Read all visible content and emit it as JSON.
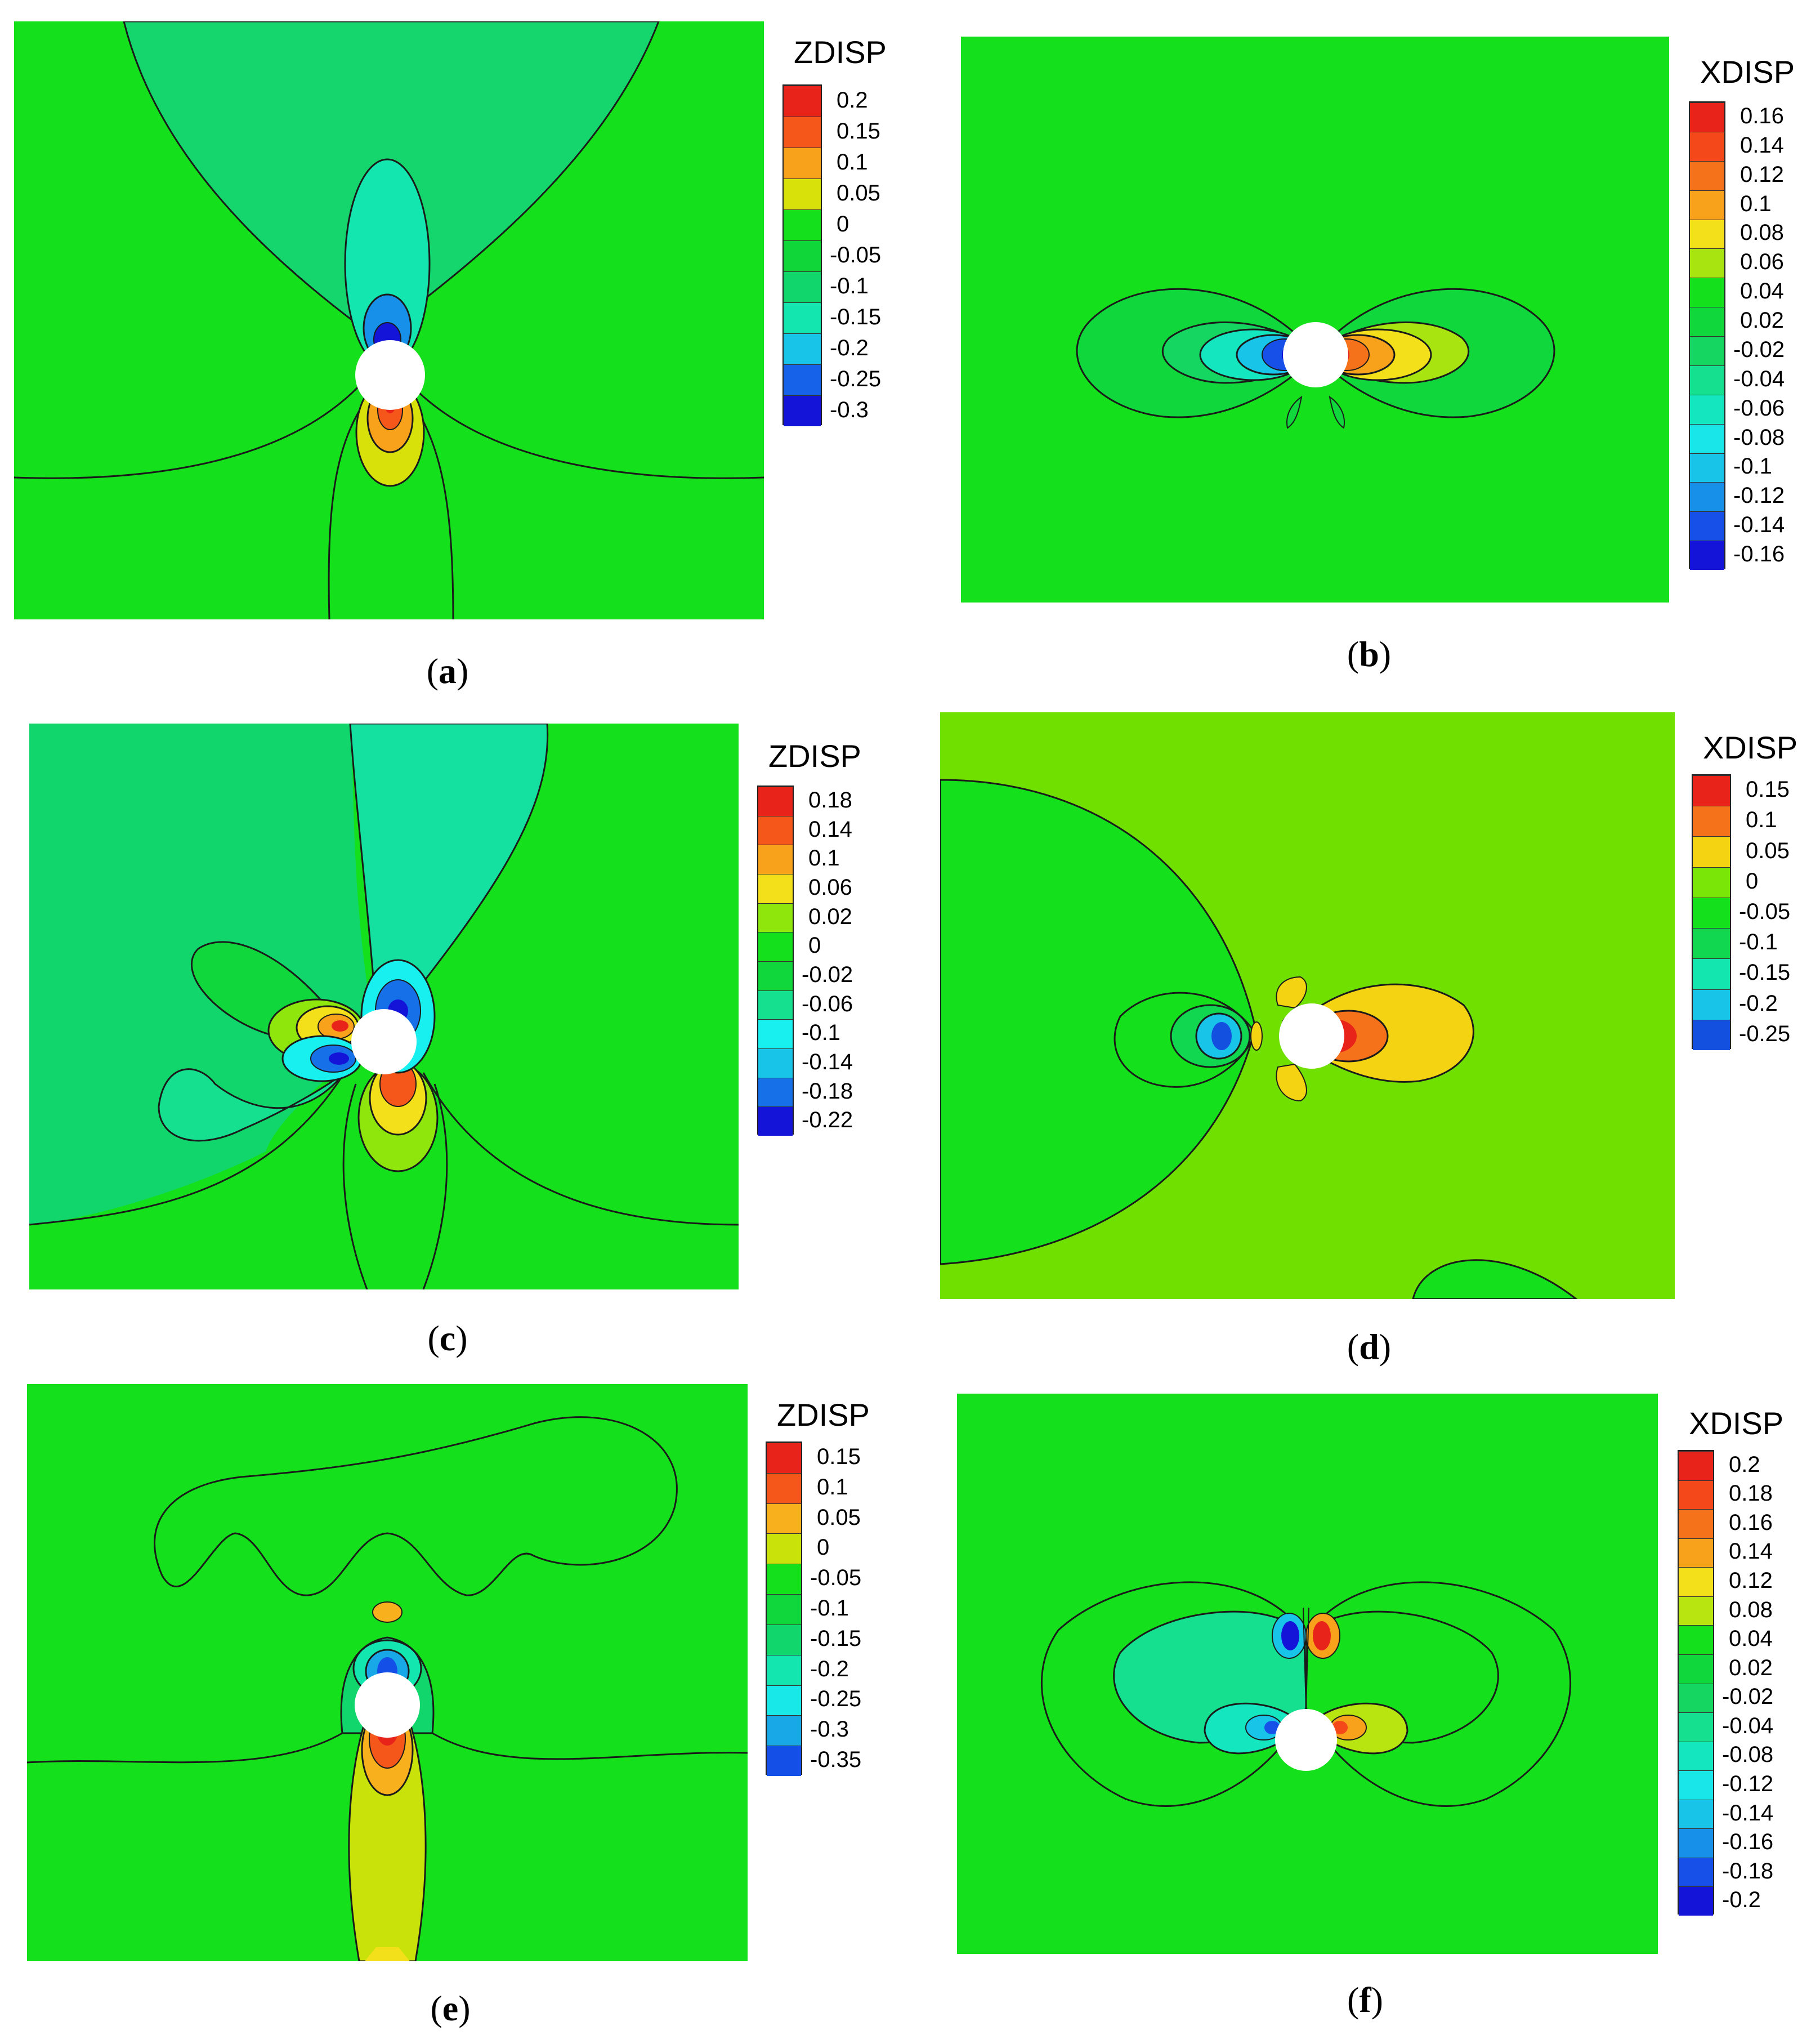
{
  "panels": [
    {
      "id": "a",
      "caption_letter": "a",
      "legend_title": "ZDISP",
      "legend_values": [
        "0.2",
        "0.15",
        "0.1",
        "0.05",
        "0",
        "-0.05",
        "-0.1",
        "-0.15",
        "-0.2",
        "-0.25",
        "-0.3"
      ],
      "legend_colors": [
        "#e8231a",
        "#f5561a",
        "#f8a21c",
        "#d8e20a",
        "#14e01c",
        "#10d63a",
        "#10d66c",
        "#14e6b0",
        "#18c4e8",
        "#1662e8",
        "#1414d8"
      ],
      "background_color": "#14e01c"
    },
    {
      "id": "b",
      "caption_letter": "b",
      "legend_title": "XDISP",
      "legend_values": [
        "0.16",
        "0.14",
        "0.12",
        "0.1",
        "0.08",
        "0.06",
        "0.04",
        "0.02",
        "-0.02",
        "-0.04",
        "-0.06",
        "-0.08",
        "-0.1",
        "-0.12",
        "-0.14",
        "-0.16"
      ],
      "legend_colors": [
        "#e8231a",
        "#f5481a",
        "#f5721a",
        "#f8a21c",
        "#f4e01a",
        "#a8e410",
        "#14e01c",
        "#10d83c",
        "#14d660",
        "#14e090",
        "#14e6c0",
        "#18e6e8",
        "#18c4e8",
        "#1690e8",
        "#1650e8",
        "#1414d8"
      ],
      "background_color": "#14e01c"
    },
    {
      "id": "c",
      "caption_letter": "c",
      "legend_title": "ZDISP",
      "legend_values": [
        "0.18",
        "0.14",
        "0.1",
        "0.06",
        "0.02",
        "0",
        "-0.02",
        "-0.06",
        "-0.1",
        "-0.14",
        "-0.18",
        "-0.22"
      ],
      "legend_colors": [
        "#e8231a",
        "#f5561a",
        "#f8a21c",
        "#f4e01a",
        "#8ee60c",
        "#14e01c",
        "#10d83c",
        "#14e090",
        "#18f0f0",
        "#18c4e8",
        "#1670e8",
        "#1414d8"
      ],
      "background_color": "#14e01c"
    },
    {
      "id": "d",
      "caption_letter": "d",
      "legend_title": "XDISP",
      "legend_values": [
        "0.15",
        "0.1",
        "0.05",
        "0",
        "-0.05",
        "-0.1",
        "-0.15",
        "-0.2",
        "-0.25"
      ],
      "legend_colors": [
        "#e8231a",
        "#f5721a",
        "#f4d412",
        "#7ae608",
        "#14e01c",
        "#10d650",
        "#14e6b0",
        "#18c4e8",
        "#1450e0"
      ],
      "background_color": "#6fe000"
    },
    {
      "id": "e",
      "caption_letter": "e",
      "legend_title": "ZDISP",
      "legend_values": [
        "0.15",
        "0.1",
        "0.05",
        "0",
        "-0.05",
        "-0.1",
        "-0.15",
        "-0.2",
        "-0.25",
        "-0.3",
        "-0.35"
      ],
      "legend_colors": [
        "#e8231a",
        "#f5561a",
        "#f8b01c",
        "#c8e20a",
        "#14e01c",
        "#10d83c",
        "#10d66c",
        "#14e6b0",
        "#18e8e8",
        "#18a8e8",
        "#1450e8"
      ],
      "background_color": "#14e01c"
    },
    {
      "id": "f",
      "caption_letter": "f",
      "legend_title": "XDISP",
      "legend_values": [
        "0.2",
        "0.18",
        "0.16",
        "0.14",
        "0.12",
        "0.08",
        "0.04",
        "0.02",
        "-0.02",
        "-0.04",
        "-0.08",
        "-0.12",
        "-0.14",
        "-0.16",
        "-0.18",
        "-0.2"
      ],
      "legend_colors": [
        "#e8231a",
        "#f5481a",
        "#f5721a",
        "#f8a21c",
        "#f4e01a",
        "#b8e410",
        "#14e01c",
        "#10d83c",
        "#14d660",
        "#14e090",
        "#14e6c0",
        "#18e6e8",
        "#18c4e8",
        "#1690e8",
        "#1650e8",
        "#1414d8"
      ],
      "background_color": "#14e01c"
    }
  ]
}
